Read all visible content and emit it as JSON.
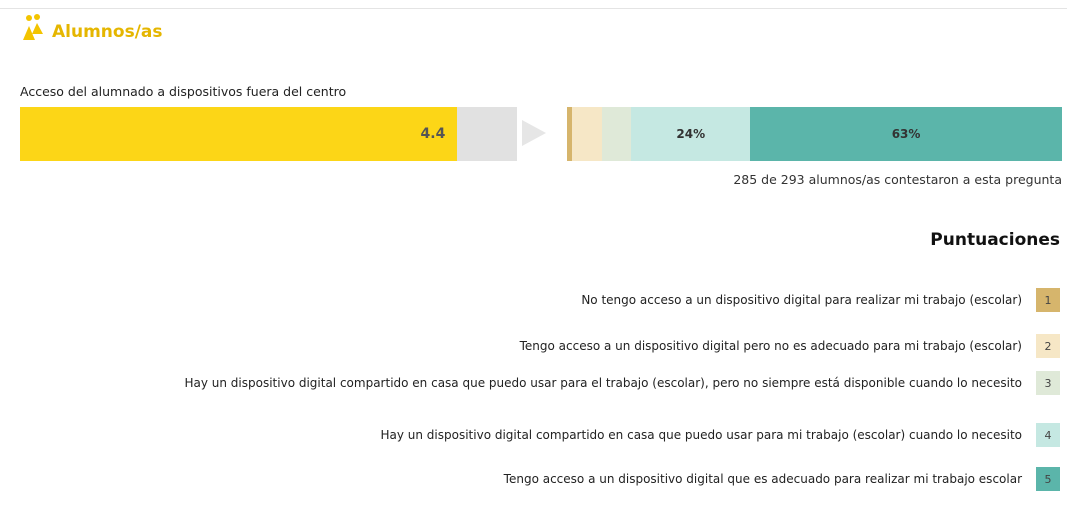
{
  "header": {
    "title": "Alumnos/as"
  },
  "chart_data": {
    "type": "score-distribution",
    "title": "Acceso del alumnado a dispositivos fuera del centro",
    "score": 4.4,
    "score_color": "#fcd617",
    "score_xlim": [
      0,
      5
    ],
    "xlim": [
      0,
      100
    ],
    "footnote": "285 de 293 alumnos/as contestaron a esta pregunta",
    "legend_title": "Puntuaciones",
    "series": [
      {
        "key": 1,
        "name": "No tengo acceso a un dispositivo digital para realizar mi trabajo (escolar)",
        "color": "#d6b56c",
        "value": 1
      },
      {
        "key": 2,
        "name": "Tengo acceso a un dispositivo digital pero no es adecuado para mi trabajo (escolar)",
        "color": "#f6e7c6",
        "value": 6
      },
      {
        "key": 3,
        "name": "Hay un dispositivo digital compartido en casa que puedo usar para el trabajo (escolar), pero no siempre está disponible cuando lo necesito",
        "color": "#dfe9d8",
        "value": 6
      },
      {
        "key": 4,
        "name": "Hay un dispositivo digital compartido en casa que puedo usar para mi trabajo (escolar) cuando lo necesito",
        "color": "#c5e8e2",
        "value": 24,
        "value_label": "24%"
      },
      {
        "key": 5,
        "name": "Tengo acceso a un dispositivo digital que es adecuado para realizar mi trabajo escolar",
        "color": "#5bb5aa",
        "value": 63,
        "value_label": "63%"
      }
    ]
  }
}
